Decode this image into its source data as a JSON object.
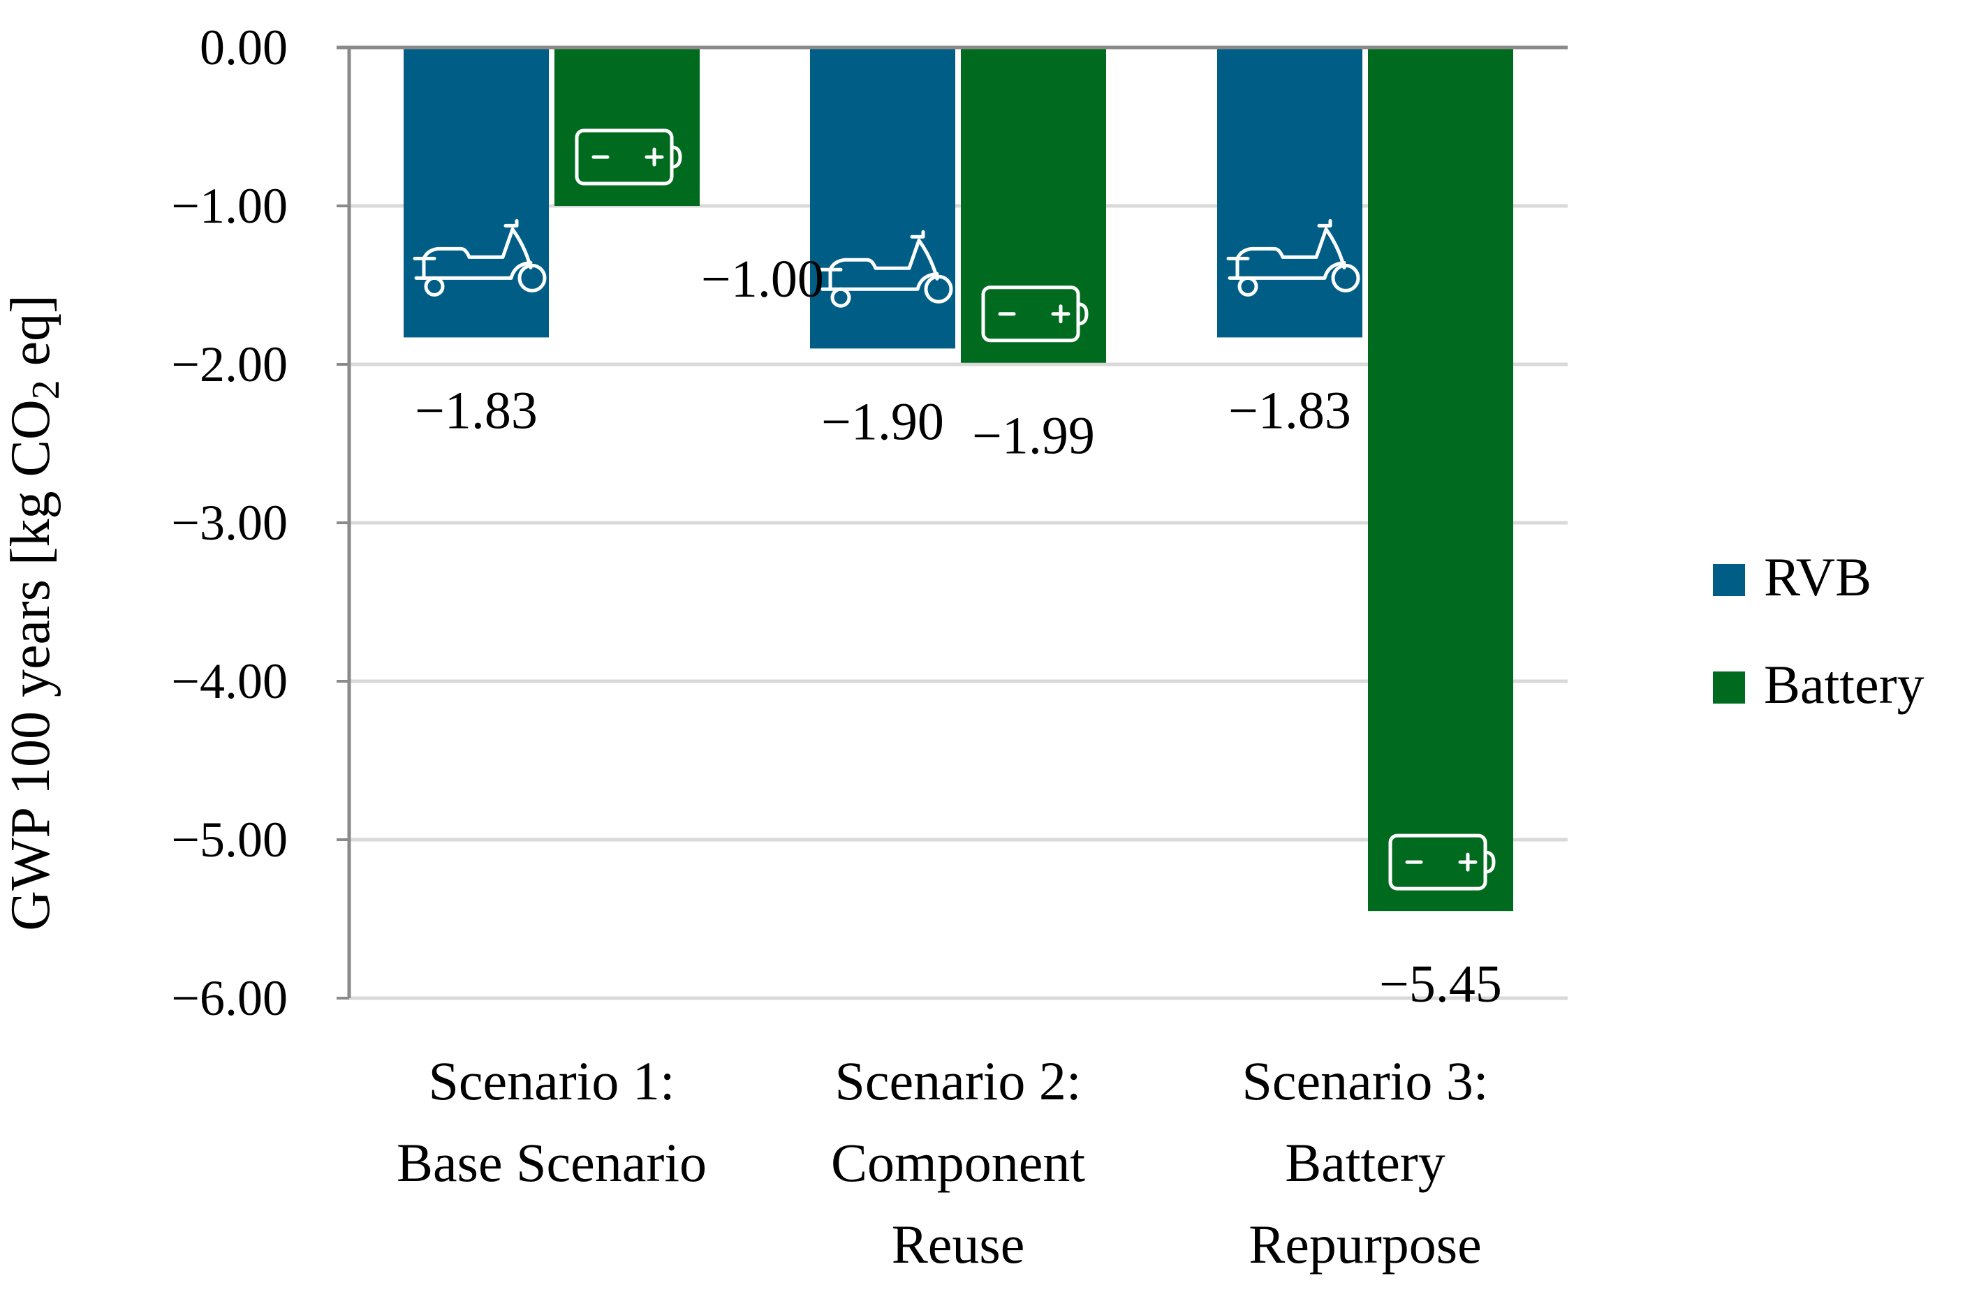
{
  "chart_data": {
    "type": "bar",
    "title": "",
    "xlabel": "",
    "ylabel": "GWP 100 years [kg CO2 eq]",
    "ylabel_parts": {
      "before": "GWP 100 years [kg CO",
      "subscript": "2",
      "after": " eq]"
    },
    "ylim": [
      -6,
      0
    ],
    "yticks": [
      0,
      -1,
      -2,
      -3,
      -4,
      -5,
      -6
    ],
    "ytick_labels": [
      "0.00",
      "−1.00",
      "−2.00",
      "−3.00",
      "−4.00",
      "−5.00",
      "−6.00"
    ],
    "grid": true,
    "legend_position": "right",
    "categories": [
      [
        "Scenario 1:",
        "Base Scenario"
      ],
      [
        "Scenario 2:",
        "Component",
        "Reuse"
      ],
      [
        "Scenario 3:",
        "Battery",
        "Repurpose"
      ]
    ],
    "series": [
      {
        "name": "RVB",
        "color": "#005E86",
        "icon": "scooter-icon",
        "values": [
          -1.83,
          -1.9,
          -1.83
        ],
        "labels": [
          "−1.83",
          "−1.90",
          "−1.83"
        ]
      },
      {
        "name": "Battery",
        "color": "#006B1E",
        "icon": "battery-icon",
        "values": [
          -1.0,
          -1.99,
          -5.45
        ],
        "labels": [
          "−1.00",
          "−1.99",
          "−5.45"
        ]
      }
    ],
    "colors": {
      "axis": "#8a8a8a",
      "grid": "#d9d9d9",
      "icon": "#ffffff"
    }
  }
}
